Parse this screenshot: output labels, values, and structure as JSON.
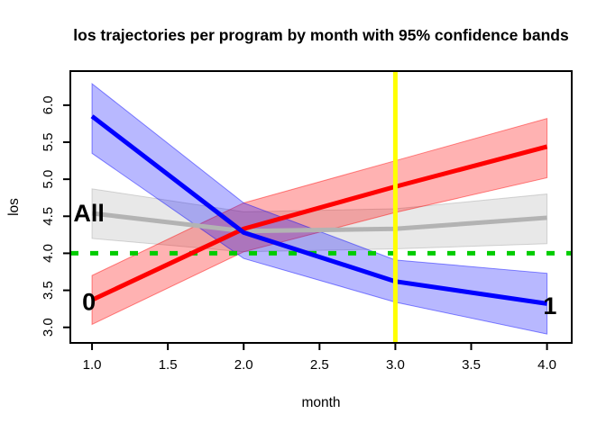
{
  "figure": {
    "title": "los trajectories per program by month with 95% confidence bands",
    "xlabel": "month",
    "ylabel": "los"
  },
  "chart_data": {
    "type": "line",
    "title": "los trajectories per program by month with 95% confidence bands",
    "xlabel": "month",
    "ylabel": "los",
    "confidence_level": "95%",
    "grid": false,
    "legend": "inline-labels",
    "xlim": [
      0.857,
      4.163
    ],
    "ylim": [
      2.79,
      6.46
    ],
    "xticks": {
      "values": [
        1.0,
        1.5,
        2.0,
        2.5,
        3.0,
        3.5,
        4.0
      ],
      "labels": [
        "1.0",
        "1.5",
        "2.0",
        "2.5",
        "3.0",
        "3.5",
        "4.0"
      ]
    },
    "yticks": {
      "values": [
        3.0,
        3.5,
        4.0,
        4.5,
        5.0,
        5.5,
        6.0
      ],
      "labels": [
        "3.0",
        "3.5",
        "4.0",
        "4.5",
        "5.0",
        "5.5",
        "6.0"
      ]
    },
    "x": [
      1,
      2,
      3,
      4
    ],
    "series": [
      {
        "name": "all-programs",
        "label": "All",
        "color": "#b3b3b3",
        "band_fill": "rgba(165,165,165,0.25)",
        "band_edge": "rgba(165,165,165,0.45)",
        "values": [
          4.54,
          4.3,
          4.33,
          4.48
        ],
        "lower": [
          4.2,
          4.02,
          4.06,
          4.13
        ],
        "upper": [
          4.87,
          4.56,
          4.6,
          4.8
        ],
        "label_pos": {
          "x": 0.98,
          "y": 4.54
        }
      },
      {
        "name": "program-0",
        "label": "0",
        "color": "#ff0000",
        "band_fill": "rgba(255,0,0,0.30)",
        "band_edge": "rgba(255,0,0,0.45)",
        "values": [
          3.37,
          4.33,
          4.9,
          5.44
        ],
        "lower": [
          3.04,
          4.02,
          4.55,
          5.02
        ],
        "upper": [
          3.7,
          4.68,
          5.25,
          5.82
        ],
        "label_pos": {
          "x": 0.98,
          "y": 3.34
        }
      },
      {
        "name": "program-1",
        "label": "1",
        "color": "#0000ff",
        "band_fill": "rgba(0,0,255,0.28)",
        "band_edge": "rgba(0,0,255,0.45)",
        "values": [
          5.85,
          4.28,
          3.62,
          3.32
        ],
        "lower": [
          5.35,
          3.93,
          3.34,
          2.91
        ],
        "upper": [
          6.29,
          4.68,
          3.91,
          3.73
        ],
        "label_pos": {
          "x": 4.02,
          "y": 3.29
        }
      }
    ],
    "reference_lines": [
      {
        "orientation": "horizontal",
        "value": 4.0,
        "color": "#00cc00",
        "style": "dashed",
        "width": 5
      },
      {
        "orientation": "vertical",
        "value": 3.0,
        "color": "#ffff00",
        "style": "solid",
        "width": 5
      }
    ]
  }
}
